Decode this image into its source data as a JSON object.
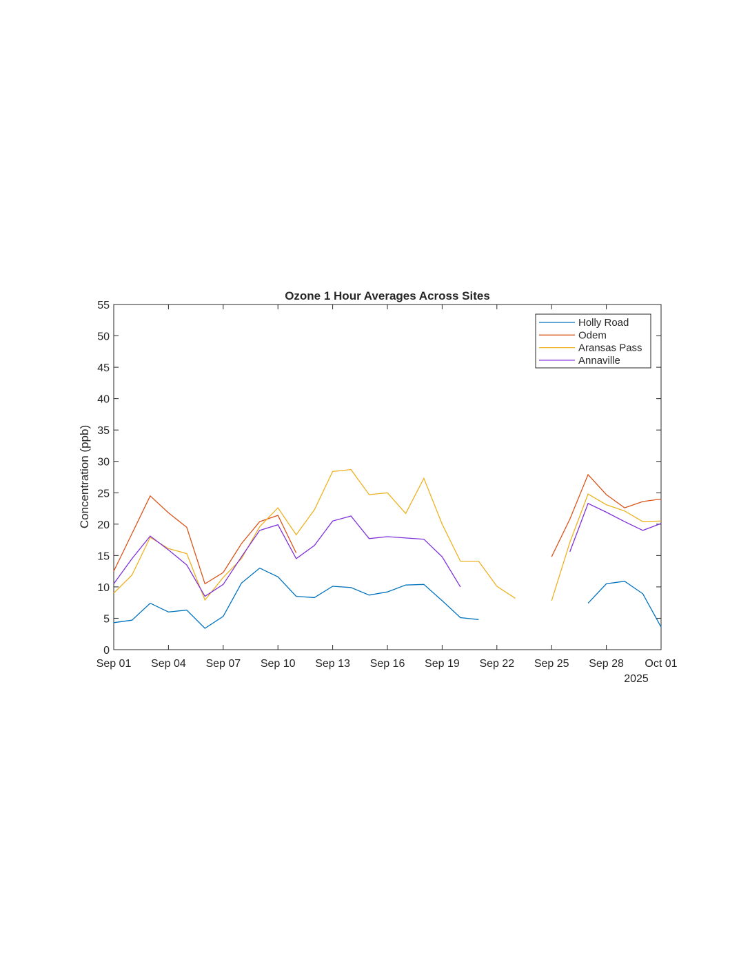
{
  "chart_data": {
    "type": "line",
    "title": "Ozone 1 Hour Averages Across Sites",
    "xlabel": "",
    "ylabel": "Concentration (ppb)",
    "ylim": [
      0,
      55
    ],
    "yticks": [
      0,
      5,
      10,
      15,
      20,
      25,
      30,
      35,
      40,
      45,
      50,
      55
    ],
    "xlim_days": [
      1,
      31
    ],
    "xticks": [
      {
        "day": 1,
        "label": "Sep 01"
      },
      {
        "day": 4,
        "label": "Sep 04"
      },
      {
        "day": 7,
        "label": "Sep 07"
      },
      {
        "day": 10,
        "label": "Sep 10"
      },
      {
        "day": 13,
        "label": "Sep 13"
      },
      {
        "day": 16,
        "label": "Sep 16"
      },
      {
        "day": 19,
        "label": "Sep 19"
      },
      {
        "day": 22,
        "label": "Sep 22"
      },
      {
        "day": 25,
        "label": "Sep 25"
      },
      {
        "day": 28,
        "label": "Sep 28"
      },
      {
        "day": 31,
        "label": "Oct 01"
      }
    ],
    "year_label": "2025",
    "grid": false,
    "legend_position": "top-right",
    "x_days": [
      1,
      2,
      3,
      4,
      5,
      6,
      7,
      8,
      9,
      10,
      11,
      12,
      13,
      14,
      15,
      16,
      17,
      18,
      19,
      20,
      21,
      22,
      23,
      24,
      25,
      26,
      27,
      28,
      29,
      30,
      31
    ],
    "series": [
      {
        "name": "Holly Road",
        "color": "#0072BD",
        "values": [
          4.3,
          4.7,
          7.4,
          6.0,
          6.3,
          3.4,
          5.3,
          10.6,
          13.0,
          11.6,
          8.5,
          8.3,
          10.1,
          9.9,
          8.7,
          9.2,
          10.3,
          10.4,
          7.8,
          5.1,
          4.8,
          null,
          null,
          null,
          null,
          null,
          7.4,
          10.5,
          10.9,
          8.9,
          3.6
        ]
      },
      {
        "name": "Odem",
        "color": "#D95319",
        "values": [
          12.5,
          18.5,
          24.5,
          21.8,
          19.5,
          10.5,
          12.3,
          16.9,
          20.4,
          21.4,
          15.4,
          null,
          null,
          null,
          null,
          null,
          null,
          null,
          null,
          null,
          null,
          null,
          null,
          null,
          14.8,
          20.8,
          27.9,
          24.7,
          22.6,
          23.6,
          24.0
        ]
      },
      {
        "name": "Aransas Pass",
        "color": "#EDB120",
        "values": [
          9.0,
          11.9,
          17.9,
          16.1,
          15.3,
          7.9,
          11.5,
          14.5,
          19.6,
          22.6,
          18.3,
          22.3,
          28.4,
          28.7,
          24.7,
          25.0,
          21.7,
          27.3,
          20.0,
          14.1,
          14.1,
          10.1,
          8.2,
          null,
          7.8,
          17.1,
          24.8,
          23.1,
          22.1,
          20.4,
          20.5
        ]
      },
      {
        "name": "Annaville",
        "color": "#7E2FD8",
        "values": [
          10.5,
          14.5,
          18.1,
          15.9,
          13.5,
          8.5,
          10.4,
          14.8,
          19.0,
          19.9,
          14.5,
          16.6,
          20.5,
          21.3,
          17.7,
          18.0,
          17.8,
          17.6,
          14.8,
          10.0,
          null,
          null,
          null,
          null,
          null,
          15.6,
          23.3,
          21.9,
          20.4,
          19.0,
          20.1
        ]
      }
    ]
  }
}
